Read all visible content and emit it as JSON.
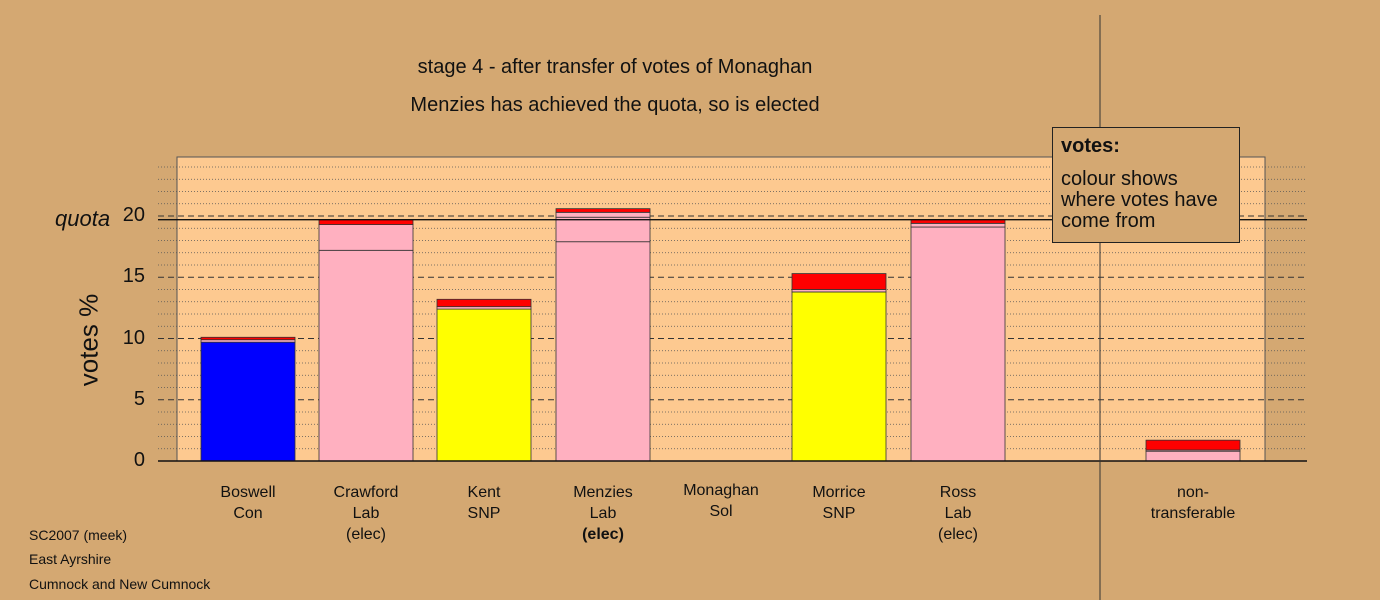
{
  "title": "stage 4 - after transfer of votes of Monaghan",
  "subtitle": "Menzies has achieved the quota, so is elected",
  "footer": [
    "SC2007 (meek)",
    "East Ayrshire",
    "Cumnock and New Cumnock"
  ],
  "legend": {
    "title": "votes:",
    "text": "colour shows where votes have come from"
  },
  "quota_label": "quota",
  "colors": {
    "background": "#d4a872",
    "plot_bg": "#fdc990",
    "con": "#0000ff",
    "lab": "#ffb0c0",
    "snp": "#ffff00",
    "transfer": "#ff0000"
  },
  "chart_data": {
    "type": "bar",
    "stacked": true,
    "ylabel": "votes %",
    "ylim": [
      0,
      25
    ],
    "yticks": [
      0,
      5,
      10,
      15,
      20
    ],
    "quota": 19.7,
    "categories": [
      {
        "lines": [
          "Boswell",
          "Con"
        ],
        "bold_last": false
      },
      {
        "lines": [
          "Crawford",
          "Lab",
          "(elec)"
        ],
        "bold_last": false
      },
      {
        "lines": [
          "Kent",
          "SNP"
        ],
        "bold_last": false
      },
      {
        "lines": [
          "Menzies",
          "Lab",
          "(elec)"
        ],
        "bold_last": true
      },
      {
        "lines": [
          "Monaghan",
          "Sol"
        ],
        "bold_last": false
      },
      {
        "lines": [
          "Morrice",
          "SNP"
        ],
        "bold_last": false
      },
      {
        "lines": [
          "Ross",
          "Lab",
          "(elec)"
        ],
        "bold_last": false
      },
      {
        "lines": [
          "non-",
          "transferable"
        ],
        "bold_last": false
      }
    ],
    "stacks": [
      [
        {
          "v": 9.7,
          "c": "con"
        },
        {
          "v": 0.2,
          "c": "lab"
        },
        {
          "v": 0.2,
          "c": "transfer"
        }
      ],
      [
        {
          "v": 17.2,
          "c": "lab"
        },
        {
          "v": 2.1,
          "c": "lab"
        },
        {
          "v": 0.4,
          "c": "transfer"
        }
      ],
      [
        {
          "v": 12.4,
          "c": "snp"
        },
        {
          "v": 0.2,
          "c": "lab"
        },
        {
          "v": 0.6,
          "c": "transfer"
        }
      ],
      [
        {
          "v": 17.9,
          "c": "lab"
        },
        {
          "v": 2.0,
          "c": "lab"
        },
        {
          "v": 0.4,
          "c": "lab"
        },
        {
          "v": 0.3,
          "c": "transfer"
        }
      ],
      [],
      [
        {
          "v": 13.8,
          "c": "snp"
        },
        {
          "v": 0.2,
          "c": "lab"
        },
        {
          "v": 1.3,
          "c": "transfer"
        }
      ],
      [
        {
          "v": 19.1,
          "c": "lab"
        },
        {
          "v": 0.3,
          "c": "lab"
        },
        {
          "v": 0.3,
          "c": "transfer"
        }
      ],
      [
        {
          "v": 0.8,
          "c": "lab"
        },
        {
          "v": 0.1,
          "c": "lab"
        },
        {
          "v": 0.8,
          "c": "transfer"
        }
      ]
    ]
  }
}
